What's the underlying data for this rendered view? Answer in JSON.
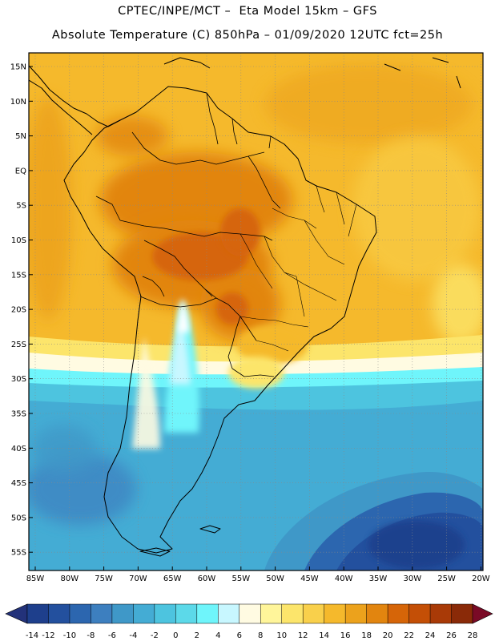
{
  "header": {
    "line1": "CPTEC/INPE/MCT –  Eta Model 15km – GFS",
    "line2": "Absolute Temperature (C) 850hPa – 01/09/2020 12UTC fct=25h"
  },
  "map": {
    "lat_labels": [
      "15N",
      "10N",
      "5N",
      "EQ",
      "5S",
      "10S",
      "15S",
      "20S",
      "25S",
      "30S",
      "35S",
      "40S",
      "45S",
      "50S",
      "55S"
    ],
    "lon_labels": [
      "85W",
      "80W",
      "75W",
      "70W",
      "65W",
      "60W",
      "55W",
      "50W",
      "45W",
      "40W",
      "35W",
      "30W",
      "25W",
      "20W"
    ]
  },
  "colorbar": {
    "tick_labels": [
      "-14",
      "-12",
      "-10",
      "-8",
      "-6",
      "-4",
      "-2",
      "0",
      "2",
      "4",
      "6",
      "8",
      "10",
      "12",
      "14",
      "16",
      "18",
      "20",
      "22",
      "24",
      "26",
      "28"
    ],
    "colors": [
      "#1e3f8c",
      "#23509e",
      "#2c66af",
      "#3d7fbf",
      "#3f98c8",
      "#44acd4",
      "#4dc4df",
      "#5cd9e9",
      "#6ff5fb",
      "#c8f7ff",
      "#fffbe2",
      "#fff59a",
      "#fce56b",
      "#f9d04b",
      "#f5b92c",
      "#eca21c",
      "#e2850f",
      "#d66508",
      "#c44f06",
      "#a93a07",
      "#8a2a08"
    ],
    "under_color": "#23327a",
    "over_color": "#7a0a26"
  }
}
